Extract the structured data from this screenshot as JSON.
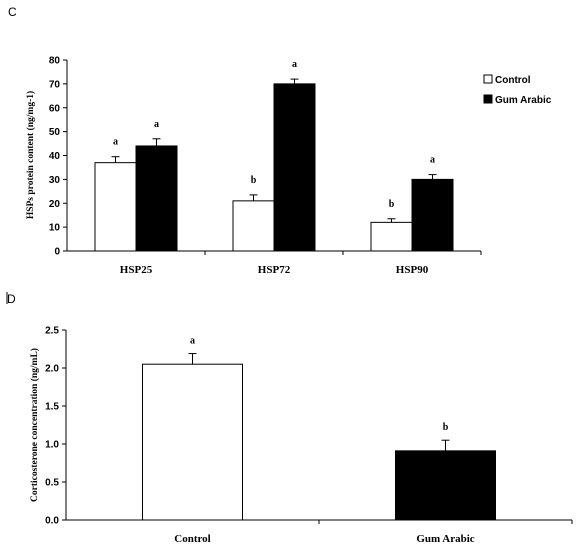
{
  "chart_data": [
    {
      "type": "bar",
      "panel_label": "C",
      "categories": [
        "HSP25",
        "HSP72",
        "HSP90"
      ],
      "series": [
        {
          "name": "Control",
          "values": [
            37,
            21,
            12
          ],
          "errors": [
            2.5,
            2.5,
            1.5
          ],
          "significance": [
            "a",
            "b",
            "b"
          ],
          "color": "#ffffff"
        },
        {
          "name": "Gum Arabic",
          "values": [
            44,
            70,
            30
          ],
          "errors": [
            3,
            2,
            2
          ],
          "significance": [
            "a",
            "a",
            "a"
          ],
          "color": "#000000"
        }
      ],
      "ylabel": "HSPs protein content (ng/mg-1)",
      "ylim": [
        0,
        80
      ],
      "yticks": [
        "0",
        "10",
        "20",
        "30",
        "40",
        "50",
        "60",
        "70",
        "80"
      ],
      "legend_position": "top-right",
      "grid": false
    },
    {
      "type": "bar",
      "panel_label": "D",
      "categories": [
        "Control",
        "Gum Arabic"
      ],
      "series": [
        {
          "values": [
            2.05,
            0.91
          ],
          "errors": [
            0.14,
            0.14
          ],
          "significance": [
            "a",
            "b"
          ],
          "colors": [
            "#ffffff",
            "#000000"
          ]
        }
      ],
      "ylabel": "Corticosterone concentration (ng/mL)",
      "ylim": [
        0,
        2.5
      ],
      "yticks": [
        "0.0",
        "0.5",
        "1.0",
        "1.5",
        "2.0",
        "2.5"
      ],
      "grid": false
    }
  ]
}
